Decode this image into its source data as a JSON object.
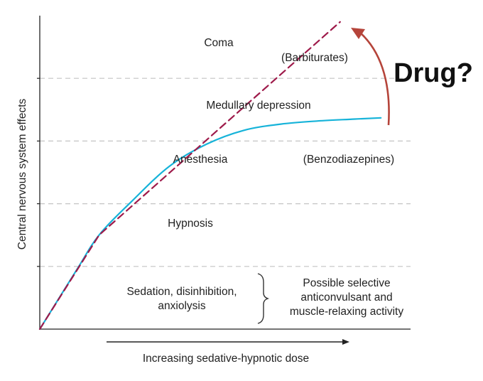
{
  "chart_data": {
    "type": "line",
    "title": "",
    "xlabel": "Increasing sedative-hypnotic dose",
    "ylabel": "Central nervous system effects",
    "xlim": [
      0,
      10
    ],
    "ylim": [
      0,
      5
    ],
    "grid": "dashed horizontal",
    "series": [
      {
        "name": "(Barbiturates)",
        "color": "#9e1a4a",
        "style": "dashed",
        "x": [
          0,
          1.6,
          8.1
        ],
        "y": [
          0,
          1.5,
          4.9
        ]
      },
      {
        "name": "(Benzodiazepines)",
        "color": "#16b3d9",
        "style": "solid",
        "x": [
          0,
          1,
          1.6,
          2.5,
          3.5,
          4.5,
          5.5,
          6.5,
          7.5,
          8.5,
          9.2
        ],
        "y": [
          0,
          0.95,
          1.5,
          2.05,
          2.6,
          2.95,
          3.17,
          3.27,
          3.32,
          3.35,
          3.37
        ]
      }
    ],
    "zones": [
      "Sedation, disinhibition,",
      "anxiolysis",
      "Hypnosis",
      "Anesthesia",
      "Medullary depression",
      "Coma"
    ],
    "bracket_note": [
      "Possible selective",
      "anticonvulsant and",
      "muscle-relaxing activity"
    ],
    "overlay_text": "Drug?"
  }
}
